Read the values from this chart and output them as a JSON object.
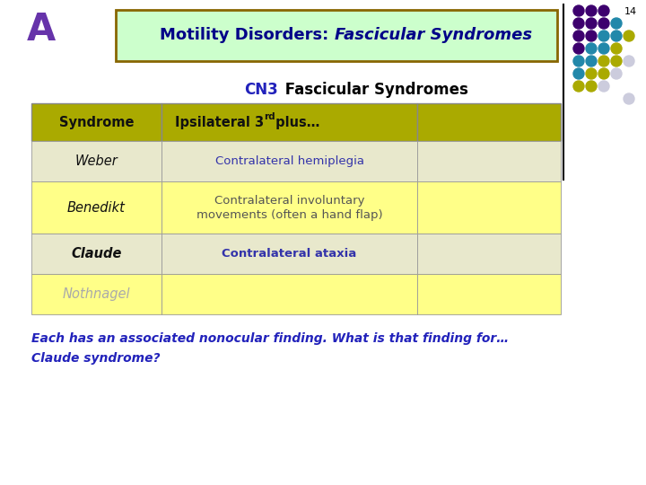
{
  "title_prefix": "Motility Disorders: ",
  "title_italic": "Fascicular Syndromes",
  "slide_letter": "A",
  "slide_number": "14",
  "subtitle_cn3": "CN3",
  "subtitle_rest": " Fascicular Syndromes",
  "table_header_col1": "Syndrome",
  "table_header_col2_a": "Ipsilateral 3",
  "table_header_col2_sup": "rd",
  "table_header_col2_b": " plus…",
  "rows": [
    {
      "name": "Weber",
      "text": "Contralateral hemiplegia",
      "name_style": "italic",
      "name_weight": "normal",
      "name_color": "#111111",
      "text_color": "#3333aa",
      "text_weight": "normal",
      "text_style": "normal",
      "bg": "#e8e8cc",
      "text_size": 9.5
    },
    {
      "name": "Benedikt",
      "text": "Contralateral involuntary\nmovements (often a hand flap)",
      "name_style": "italic",
      "name_weight": "normal",
      "name_color": "#111111",
      "text_color": "#555555",
      "text_weight": "normal",
      "text_style": "normal",
      "bg": "#ffff88",
      "text_size": 9.5
    },
    {
      "name": "Claude",
      "text": "Contralateral ataxia",
      "name_style": "italic",
      "name_weight": "bold",
      "name_color": "#111111",
      "text_color": "#3333aa",
      "text_weight": "bold",
      "text_style": "normal",
      "bg": "#e8e8cc",
      "text_size": 9.5
    },
    {
      "name": "Nothnagel",
      "text": "",
      "name_style": "italic",
      "name_weight": "normal",
      "name_color": "#aaaaaa",
      "text_color": "#aaaaaa",
      "text_weight": "normal",
      "text_style": "italic",
      "bg": "#ffff88",
      "text_size": 9.5
    }
  ],
  "header_bg": "#aaaa00",
  "footer_line1": "Each has an associated nonocular finding. What is that finding for…",
  "footer_line2": "Claude syndrome?",
  "footer_color": "#2222bb",
  "title_box_bg": "#ccffcc",
  "title_box_border": "#886600",
  "title_text_color": "#000088",
  "bg_color": "#ffffff",
  "dot_pattern": [
    [
      "#3d006e",
      "#3d006e",
      "#3d006e",
      ""
    ],
    [
      "#3d006e",
      "#3d006e",
      "#3d006e",
      "#2288aa"
    ],
    [
      "#3d006e",
      "#3d006e",
      "#2288aa",
      "#2288aa",
      "#aaaa00"
    ],
    [
      "#3d006e",
      "#2288aa",
      "#2288aa",
      "#aaaa00"
    ],
    [
      "#2288aa",
      "#2288aa",
      "#aaaa00",
      "#aaaa00",
      "#ccccdd"
    ],
    [
      "#2288aa",
      "#aaaa00",
      "#aaaa00",
      "#ccccdd"
    ],
    [
      "#aaaa00",
      "#aaaa00",
      "#ccccdd"
    ],
    [
      "",
      "",
      "",
      "",
      "#ccccdd"
    ]
  ],
  "subtitle_cn3_color": "#2222bb",
  "letter_color": "#6633aa"
}
